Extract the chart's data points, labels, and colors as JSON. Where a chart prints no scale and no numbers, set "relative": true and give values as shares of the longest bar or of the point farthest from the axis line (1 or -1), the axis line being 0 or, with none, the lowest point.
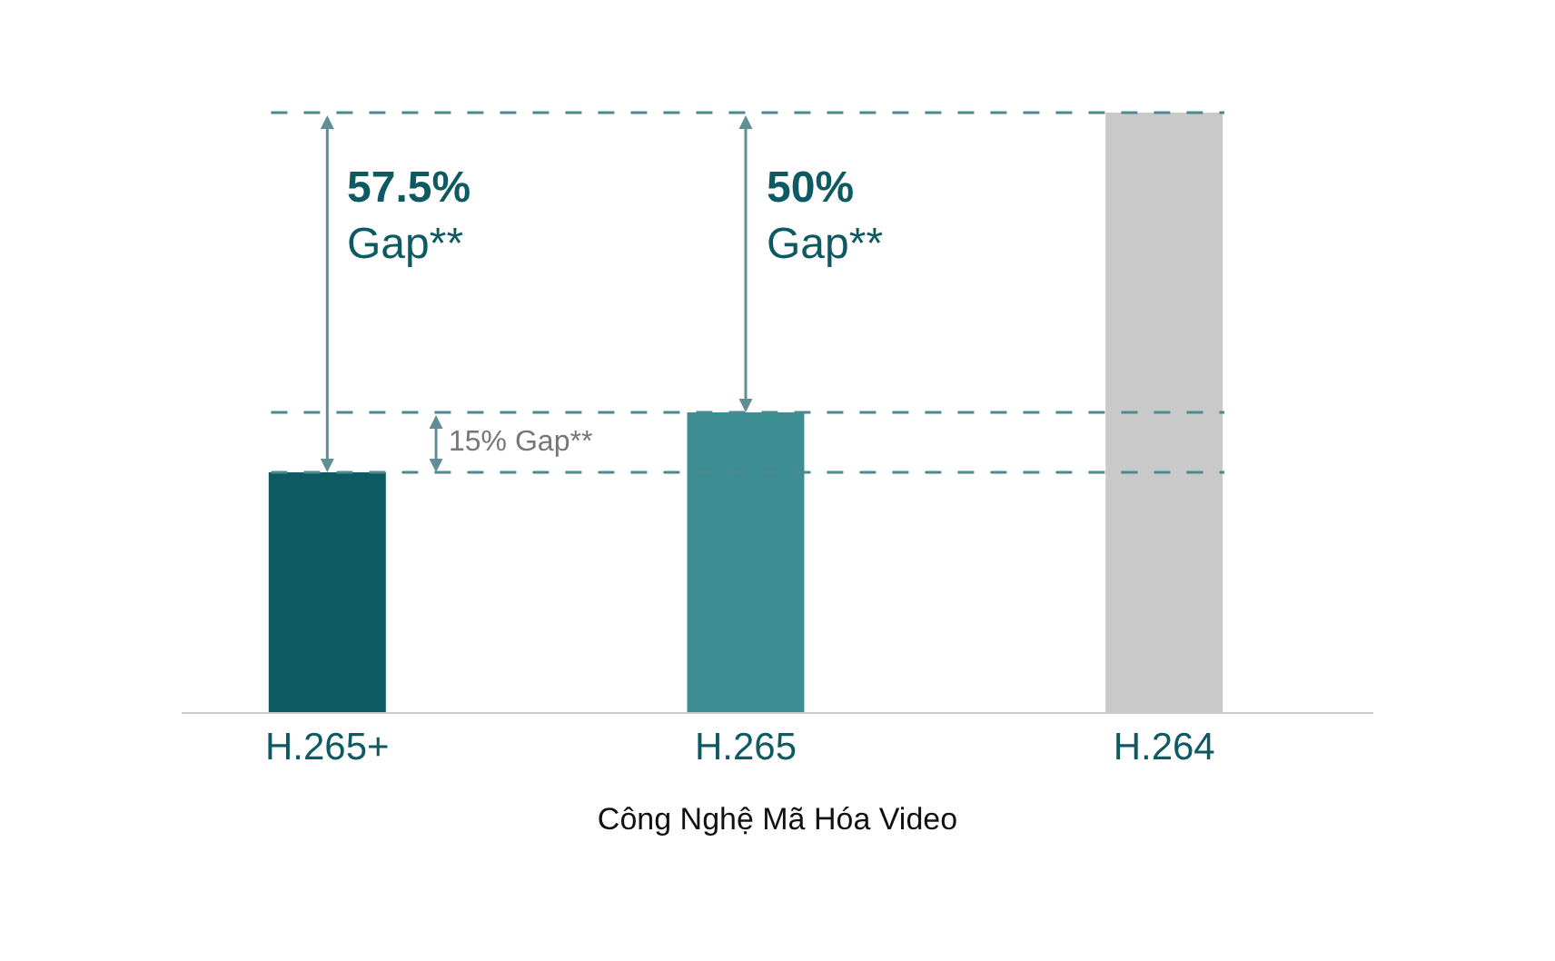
{
  "chart_data": {
    "type": "bar",
    "relative": true,
    "xlabel": "Công Nghệ Mã Hóa Video",
    "categories": [
      "H.265+",
      "H.265",
      "H.264"
    ],
    "values": [
      0.4,
      0.5,
      1
    ],
    "colors": [
      "#0e5a62",
      "#3d8e93",
      "#c9c9c9"
    ],
    "ref_lines": [
      {
        "axis": "y",
        "value": 1,
        "color": "#4a8a90",
        "line_style": "dashed"
      },
      {
        "axis": "y",
        "value": 0.5,
        "color": "#4a8a90",
        "line_style": "dashed"
      },
      {
        "axis": "y",
        "value": 0.4,
        "color": "#4a8a90",
        "line_style": "dashed"
      }
    ],
    "annotations": [
      {
        "text": "57.5% Gap**",
        "x": "H.265+",
        "y": 1
      },
      {
        "text": "50% Gap**",
        "x": "H.265",
        "y": 1
      },
      "15% Gap**"
    ]
  }
}
